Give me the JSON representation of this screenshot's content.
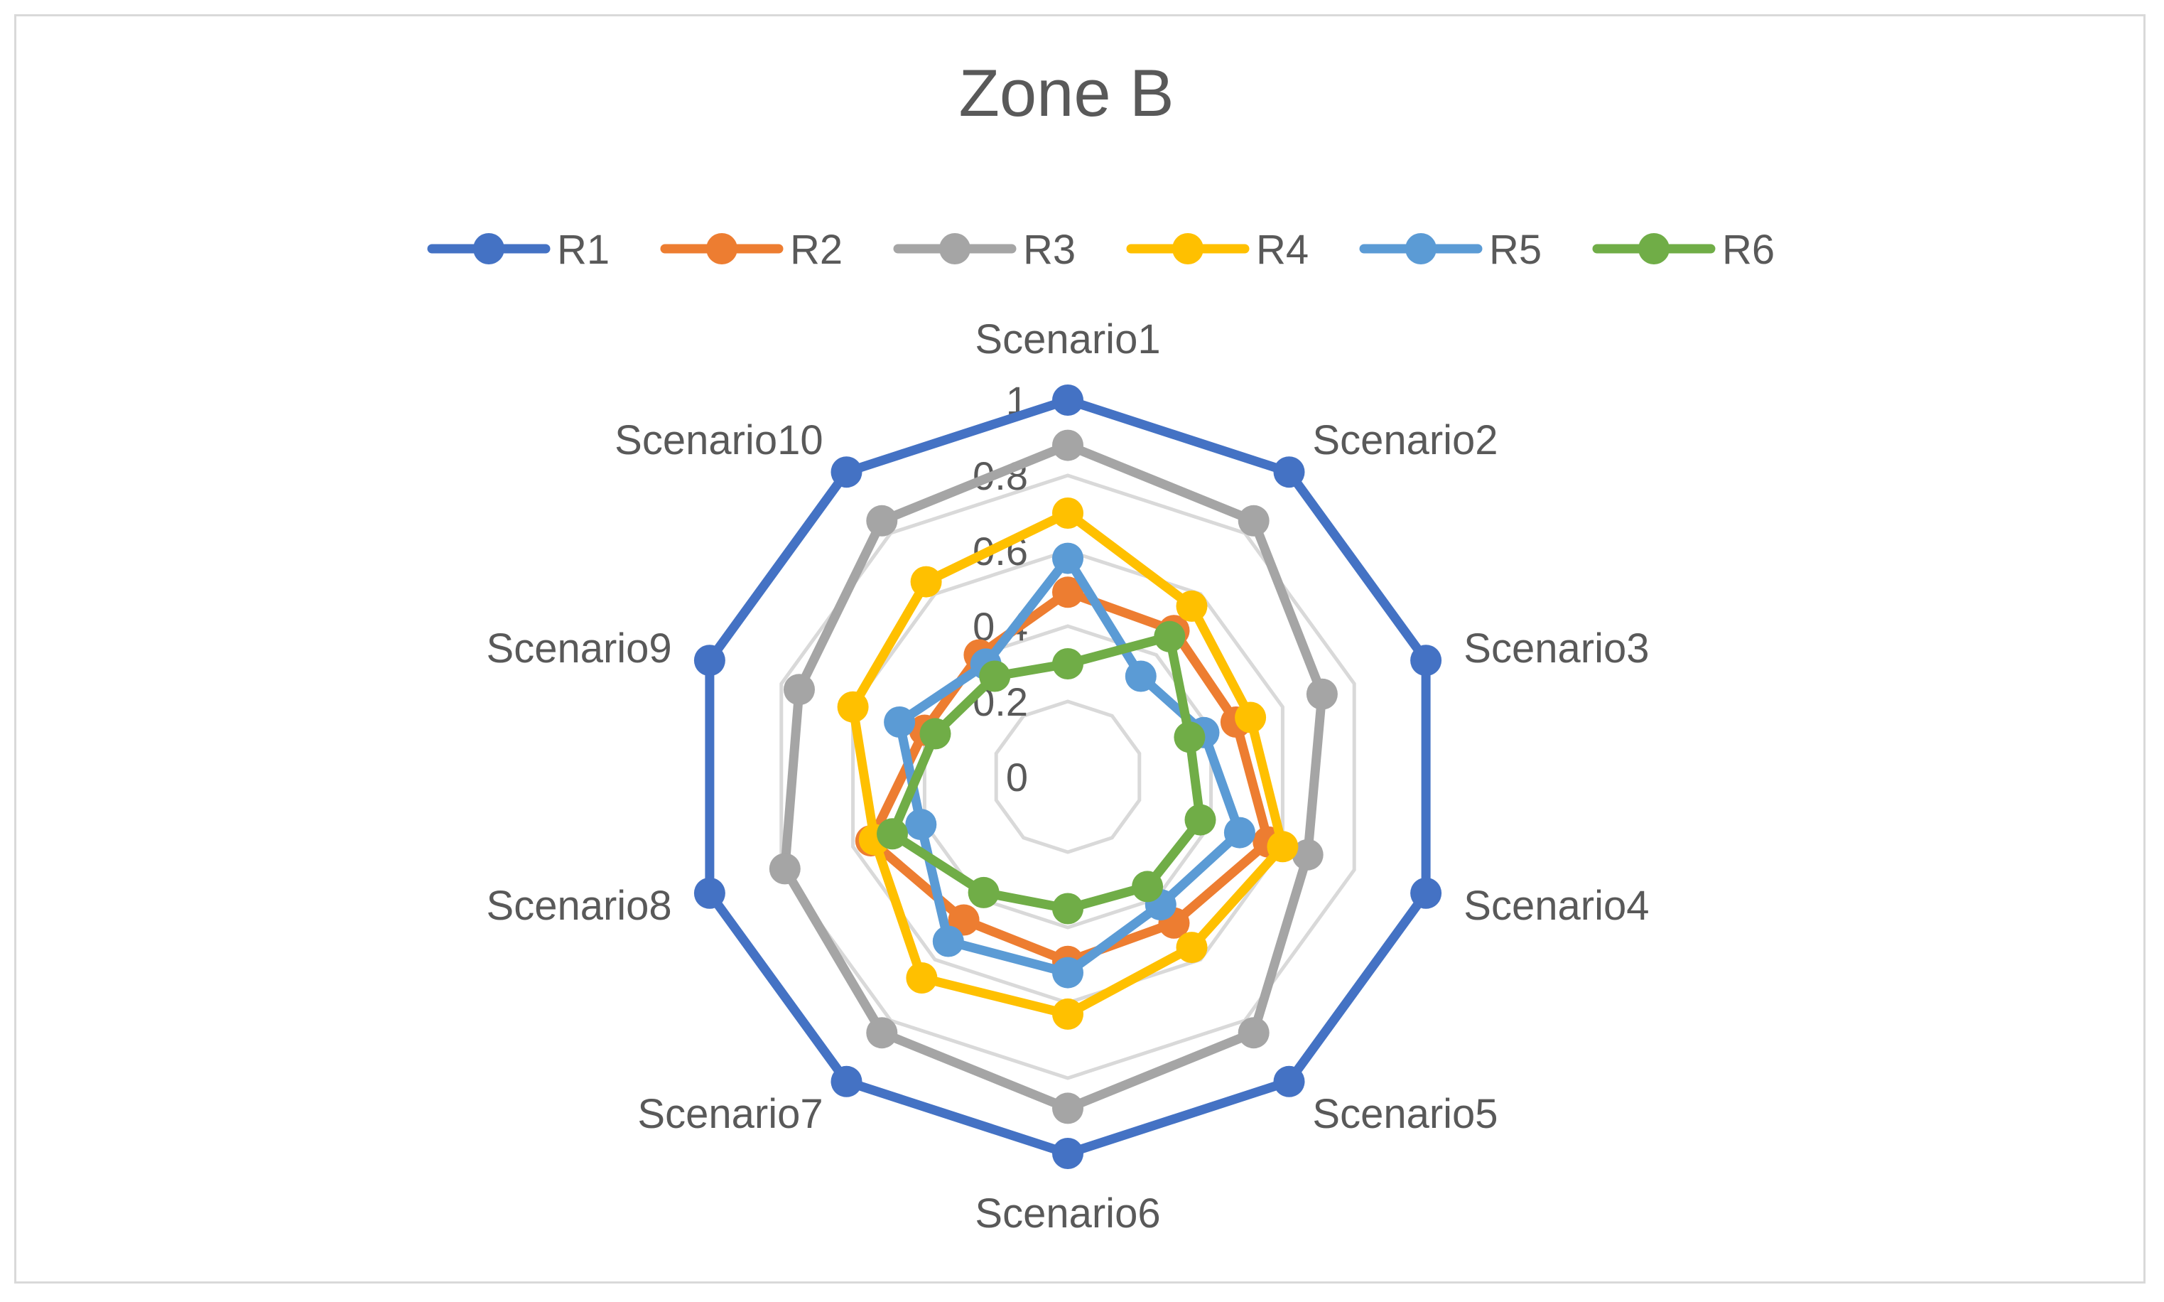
{
  "chart_data": {
    "type": "radar",
    "title": "Zone B",
    "categories": [
      "Scenario1",
      "Scenario2",
      "Scenario3",
      "Scenario4",
      "Scenario5",
      "Scenario6",
      "Scenario7",
      "Scenario8",
      "Scenario9",
      "Scenario10"
    ],
    "radial_range": [
      0,
      1
    ],
    "radial_ticks": [
      "0",
      "0.2",
      "0.4",
      "0.6",
      "0.8",
      "1"
    ],
    "grid": true,
    "legend_position": "top",
    "series": [
      {
        "name": "R1",
        "color": "#4472C4",
        "values": [
          1,
          1,
          1,
          1,
          1,
          1,
          1,
          1,
          1,
          1
        ]
      },
      {
        "name": "R2",
        "color": "#ED7D31",
        "values": [
          0.49,
          0.48,
          0.47,
          0.56,
          0.48,
          0.49,
          0.47,
          0.55,
          0.4,
          0.4
        ]
      },
      {
        "name": "R3",
        "color": "#A5A5A5",
        "values": [
          0.88,
          0.84,
          0.71,
          0.67,
          0.84,
          0.88,
          0.84,
          0.79,
          0.75,
          0.84
        ]
      },
      {
        "name": "R4",
        "color": "#FFC000",
        "values": [
          0.7,
          0.56,
          0.51,
          0.6,
          0.56,
          0.63,
          0.66,
          0.54,
          0.6,
          0.64
        ]
      },
      {
        "name": "R5",
        "color": "#5B9BD5",
        "values": [
          0.58,
          0.33,
          0.38,
          0.48,
          0.42,
          0.52,
          0.54,
          0.41,
          0.47,
          0.37
        ]
      },
      {
        "name": "R6",
        "color": "#70AD47",
        "values": [
          0.3,
          0.46,
          0.34,
          0.37,
          0.36,
          0.35,
          0.38,
          0.49,
          0.37,
          0.33
        ]
      }
    ]
  }
}
